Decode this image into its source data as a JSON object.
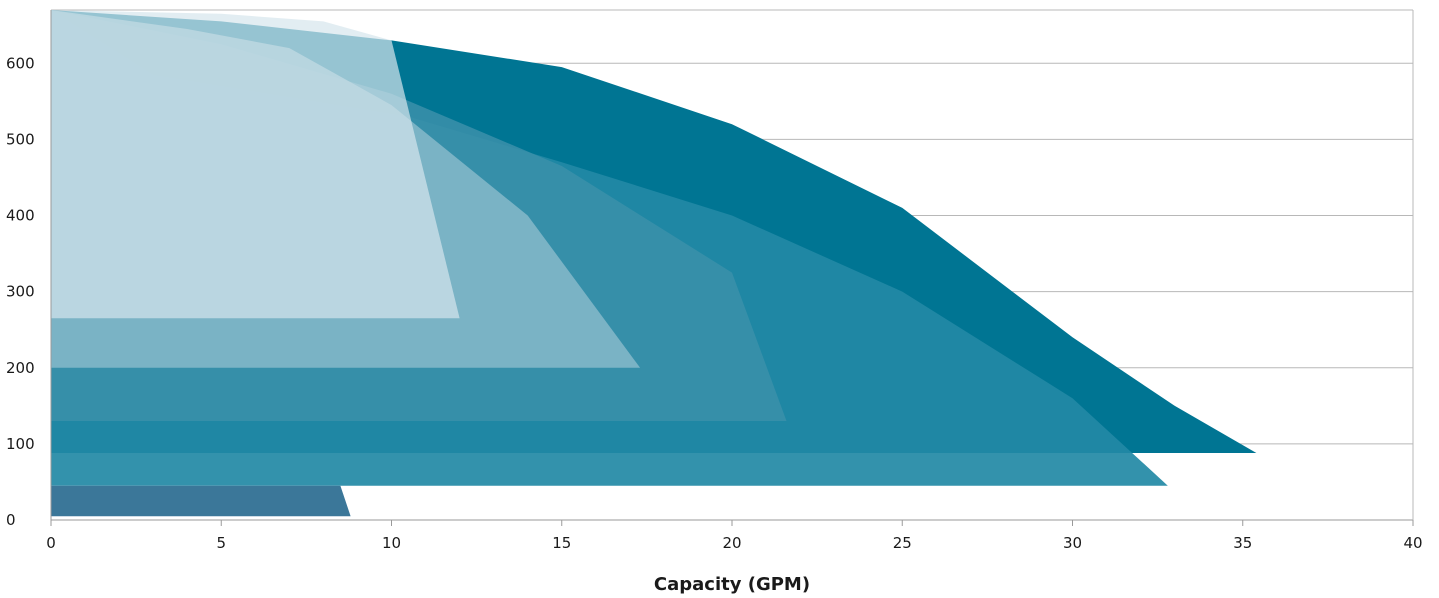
{
  "chart_data": {
    "type": "area",
    "title": "",
    "xlabel": "Capacity (GPM)",
    "ylabel": "",
    "xlim": [
      0,
      40
    ],
    "ylim": [
      0,
      670
    ],
    "x_ticks": [
      "0",
      "5",
      "10",
      "15",
      "20",
      "25",
      "30",
      "35",
      "40"
    ],
    "y_ticks": [
      "0",
      "100",
      "200",
      "300",
      "400",
      "500",
      "600"
    ],
    "grid": "horizontal",
    "legend": "none",
    "series": [
      {
        "color": "#007593",
        "opacity": 1.0,
        "points": [
          [
            0,
            670
          ],
          [
            5,
            655
          ],
          [
            10,
            630
          ],
          [
            15,
            595
          ],
          [
            20,
            520
          ],
          [
            25,
            410
          ],
          [
            30,
            240
          ],
          [
            33,
            150
          ],
          [
            35.4,
            88
          ],
          [
            0,
            88
          ]
        ]
      },
      {
        "color": "#2289a5",
        "opacity": 0.92,
        "points": [
          [
            0,
            670
          ],
          [
            3,
            585
          ],
          [
            10.5,
            530
          ],
          [
            15,
            470
          ],
          [
            20,
            400
          ],
          [
            25,
            300
          ],
          [
            30,
            160
          ],
          [
            32.8,
            45
          ],
          [
            0,
            45
          ]
        ]
      },
      {
        "color": "#3b90aa",
        "opacity": 0.85,
        "points": [
          [
            0,
            670
          ],
          [
            5,
            625
          ],
          [
            10,
            560
          ],
          [
            15,
            465
          ],
          [
            20,
            325
          ],
          [
            21.6,
            130
          ],
          [
            0,
            130
          ]
        ]
      },
      {
        "color": "#8cbccc",
        "opacity": 0.8,
        "points": [
          [
            0,
            670
          ],
          [
            4,
            645
          ],
          [
            7,
            620
          ],
          [
            10,
            545
          ],
          [
            14,
            400
          ],
          [
            17.3,
            200
          ],
          [
            0,
            200
          ]
        ]
      },
      {
        "color": "#d5e5ec",
        "opacity": 0.7,
        "points": [
          [
            0,
            670
          ],
          [
            5,
            665
          ],
          [
            8,
            655
          ],
          [
            10,
            630
          ],
          [
            12,
            265
          ],
          [
            0,
            265
          ]
        ]
      },
      {
        "color": "#3b7799",
        "opacity": 1.0,
        "points": [
          [
            0,
            45
          ],
          [
            8.5,
            45
          ],
          [
            8.8,
            5
          ],
          [
            0,
            5
          ]
        ]
      }
    ]
  }
}
